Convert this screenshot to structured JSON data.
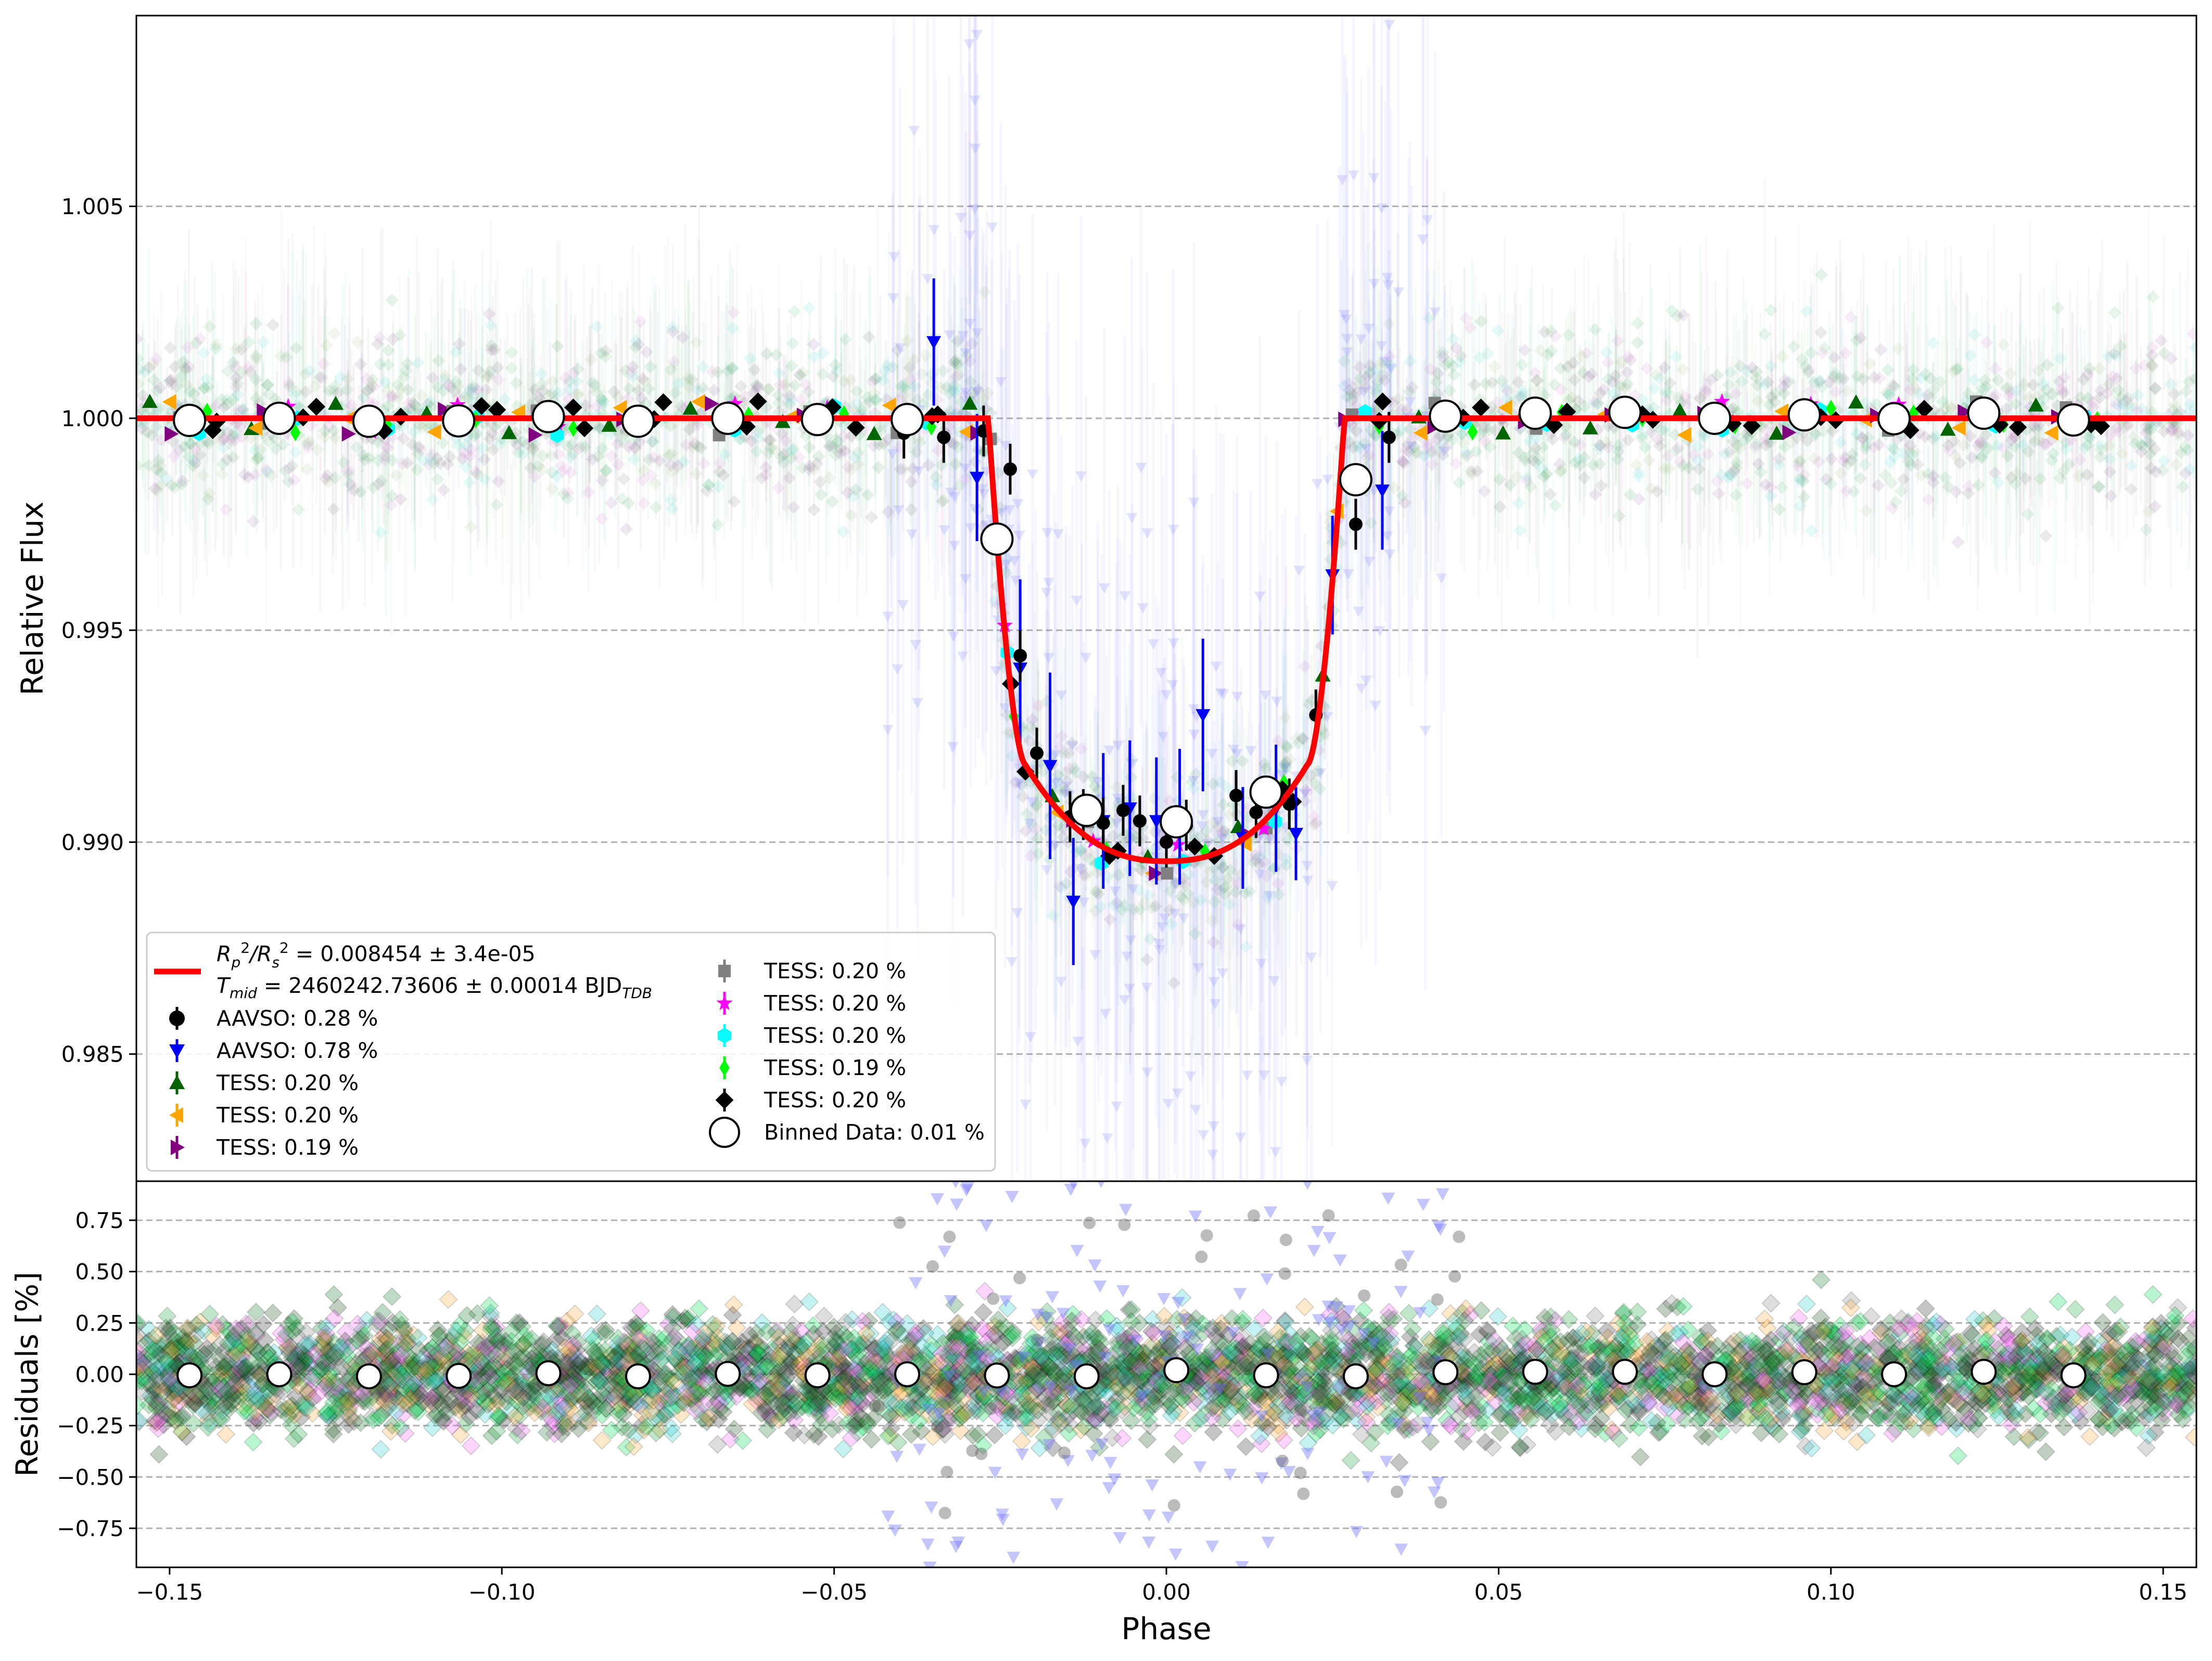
{
  "chart_data": [
    {
      "panel": "top",
      "type": "scatter",
      "xlabel": "",
      "ylabel": "Relative Flux",
      "xlim": [
        -0.155,
        0.155
      ],
      "ylim": [
        0.982,
        1.0095
      ],
      "yticks": [
        0.985,
        0.99,
        0.995,
        1.0,
        1.005
      ],
      "ytick_labels": [
        "0.985",
        "0.990",
        "0.995",
        "1.000",
        "1.005"
      ],
      "grid": "horizontal dashed",
      "legend": {
        "placement": "lower-left",
        "fit_label_1": "R_p²/R_s² = 0.008454 ± 3.4e-05",
        "fit_label_2": "T_mid = 2460242.73606 ± 0.00014 BJD_TDB",
        "entries": [
          {
            "label": "AAVSO: 0.28 %",
            "marker": "circle",
            "color": "#000000"
          },
          {
            "label": "AAVSO: 0.78 %",
            "marker": "triangle-down",
            "color": "#0000ff"
          },
          {
            "label": "TESS: 0.20 %",
            "marker": "triangle-up",
            "color": "#006400"
          },
          {
            "label": "TESS: 0.20 %",
            "marker": "triangle-left",
            "color": "#ffa500"
          },
          {
            "label": "TESS: 0.19 %",
            "marker": "triangle-right",
            "color": "#800080"
          },
          {
            "label": "TESS: 0.20 %",
            "marker": "square",
            "color": "#808080"
          },
          {
            "label": "TESS: 0.20 %",
            "marker": "star",
            "color": "#ff00ff"
          },
          {
            "label": "TESS: 0.20 %",
            "marker": "hexagon",
            "color": "#00ffff"
          },
          {
            "label": "TESS: 0.19 %",
            "marker": "diamond-thin",
            "color": "#00ff00"
          },
          {
            "label": "TESS: 0.20 %",
            "marker": "diamond",
            "color": "#000000"
          },
          {
            "label": "Binned Data: 0.01 %",
            "marker": "open-circle",
            "color": "#000000"
          }
        ]
      },
      "model": {
        "name": "transit model",
        "color": "#ff0000",
        "baseline": 1.0,
        "depth_min": 0.98955,
        "ingress_start": -0.0268,
        "ingress_end": -0.0213,
        "egress_start": 0.0213,
        "egress_end": 0.0268
      },
      "binned": {
        "x": [
          -0.147,
          -0.1335,
          -0.12,
          -0.1065,
          -0.093,
          -0.0795,
          -0.066,
          -0.0525,
          -0.039,
          -0.0255,
          -0.012,
          0.0015,
          0.015,
          0.0285,
          0.042,
          0.0555,
          0.069,
          0.0825,
          0.096,
          0.1095,
          0.123,
          0.1365
        ],
        "y": [
          0.99995,
          1.0,
          0.99993,
          0.99994,
          1.00004,
          0.99993,
          1.0,
          0.99997,
          0.99997,
          0.99715,
          0.99075,
          0.99048,
          0.99118,
          0.99855,
          1.00005,
          1.00012,
          1.00014,
          1.0,
          1.00008,
          0.99999,
          1.00012,
          0.99996
        ]
      },
      "aavso_blue": {
        "x": [
          -0.035,
          -0.0285,
          -0.022,
          -0.0175,
          -0.014,
          -0.0095,
          -0.0055,
          -0.0015,
          0.002,
          0.0055,
          0.0115,
          0.0165,
          0.0195,
          0.025,
          0.0325
        ],
        "y": [
          1.0018,
          0.9986,
          0.9941,
          0.9918,
          0.9886,
          0.9905,
          0.9908,
          0.9905,
          0.9906,
          0.993,
          0.9901,
          0.9908,
          0.9902,
          0.9963,
          0.9983
        ],
        "err": [
          0.0015,
          0.0015,
          0.0021,
          0.0022,
          0.0015,
          0.0016,
          0.0016,
          0.0015,
          0.0016,
          0.0018,
          0.0012,
          0.0015,
          0.0011,
          0.0014,
          0.0014
        ]
      },
      "aavso_black": {
        "x": [
          -0.0395,
          -0.0335,
          -0.0275,
          -0.0235,
          -0.022,
          -0.0195,
          -0.0145,
          -0.0125,
          -0.0095,
          -0.0065,
          -0.004,
          0.0,
          0.003,
          0.0105,
          0.0135,
          0.0185,
          0.0225,
          0.0285,
          0.0335
        ],
        "y": [
          0.99965,
          0.99955,
          0.9997,
          0.9988,
          0.9944,
          0.9921,
          0.9906,
          0.99065,
          0.99045,
          0.99075,
          0.9905,
          0.99,
          0.9904,
          0.9911,
          0.9907,
          0.9909,
          0.993,
          0.9975,
          0.99955
        ],
        "err": [
          0.0006,
          0.0006,
          0.0006,
          0.0006,
          0.0006,
          0.0006,
          0.0006,
          0.0006,
          0.0006,
          0.0006,
          0.0006,
          0.0006,
          0.0006,
          0.0006,
          0.0006,
          0.0006,
          0.0006,
          0.0006,
          0.0006
        ]
      }
    },
    {
      "panel": "bottom",
      "type": "scatter",
      "xlabel": "Phase",
      "ylabel": "Residuals [%]",
      "xlim": [
        -0.155,
        0.155
      ],
      "ylim": [
        -0.94,
        0.94
      ],
      "xticks": [
        -0.15,
        -0.1,
        -0.05,
        0.0,
        0.05,
        0.1,
        0.15
      ],
      "xtick_labels": [
        "−0.15",
        "−0.10",
        "−0.05",
        "0.00",
        "0.05",
        "0.10",
        "0.15"
      ],
      "yticks": [
        -0.75,
        -0.5,
        -0.25,
        0.0,
        0.25,
        0.5,
        0.75
      ],
      "ytick_labels": [
        "−0.75",
        "−0.50",
        "−0.25",
        "0.00",
        "0.25",
        "0.50",
        "0.75"
      ],
      "grid": "horizontal dashed",
      "binned_residuals": {
        "x": [
          -0.147,
          -0.1335,
          -0.12,
          -0.1065,
          -0.093,
          -0.0795,
          -0.066,
          -0.0525,
          -0.039,
          -0.0255,
          -0.012,
          0.0015,
          0.015,
          0.0285,
          0.042,
          0.0555,
          0.069,
          0.0825,
          0.096,
          0.1095,
          0.123,
          0.1365
        ],
        "y": [
          -0.005,
          0.0,
          -0.01,
          -0.008,
          0.005,
          -0.01,
          0.002,
          -0.005,
          0.0,
          -0.006,
          -0.01,
          0.02,
          -0.005,
          -0.01,
          0.01,
          0.012,
          0.012,
          0.0,
          0.01,
          0.0,
          0.012,
          -0.005
        ]
      }
    }
  ]
}
